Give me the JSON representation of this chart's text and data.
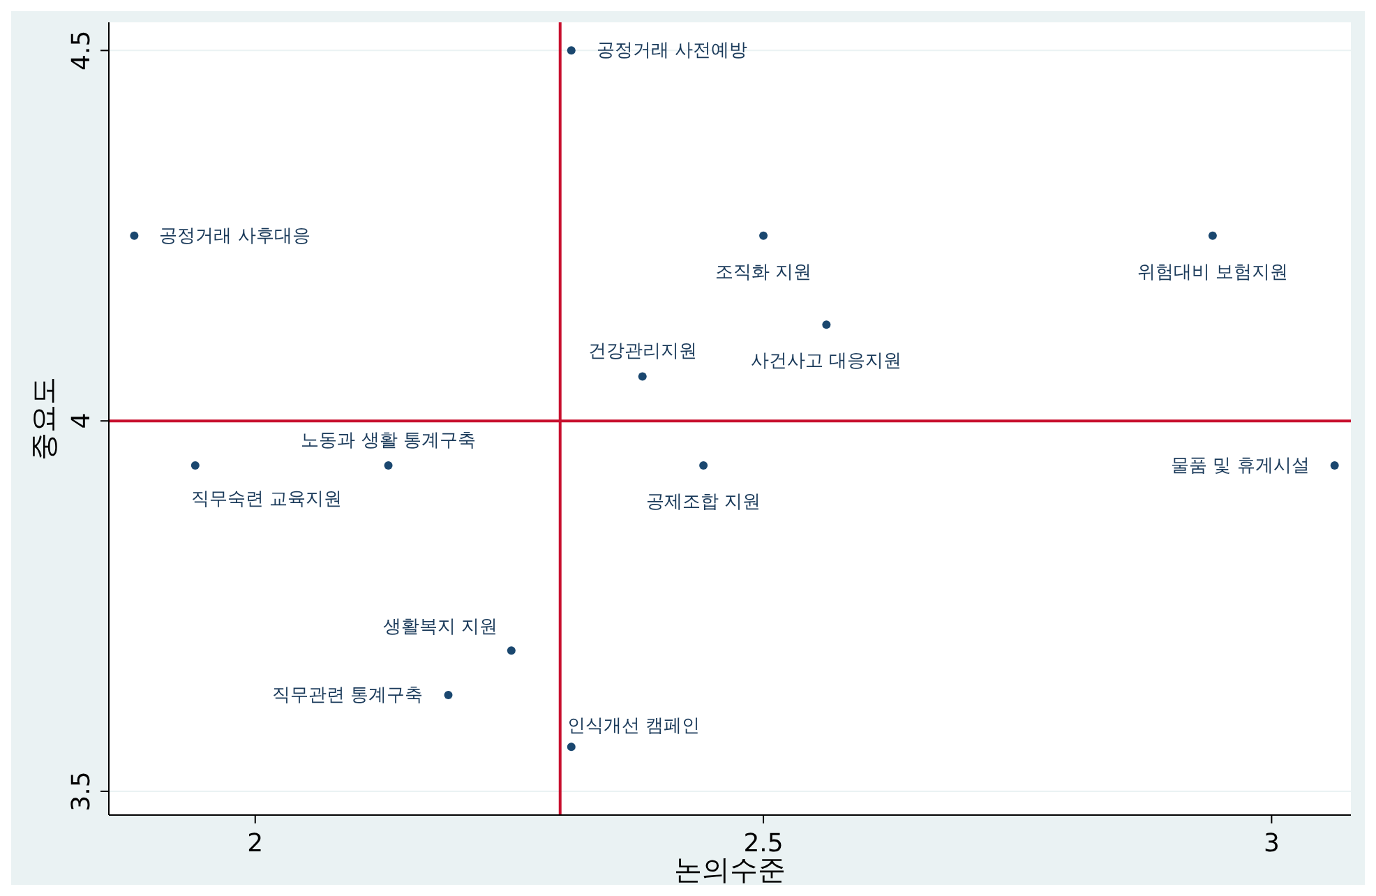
{
  "chart_data": {
    "type": "scatter",
    "xlabel": "논의수준",
    "ylabel": "중요도",
    "x": [
      2.311,
      1.881,
      2.5,
      2.942,
      2.562,
      2.381,
      2.131,
      1.941,
      2.441,
      3.062,
      2.252,
      2.19,
      2.311
    ],
    "values": [
      4.5,
      4.25,
      4.25,
      4.25,
      4.13,
      4.06,
      3.94,
      3.94,
      3.94,
      3.94,
      3.69,
      3.63,
      3.56
    ],
    "value_labels": [
      "공정거래 사전예방",
      "공정거래 사후대응",
      "조직화 지원",
      "위험대비 보험지원",
      "사건사고 대응지원",
      "건강관리지원",
      "노동과 생활 통계구축",
      "직무숙련 교육지원",
      "공제조합 지원",
      "물품 및 휴게시설",
      "생활복지 지원",
      "직무관련 통계구축",
      "인식개선 캠페인"
    ],
    "color": "#1a476f",
    "marker": "circle",
    "xlim": [
      1.856,
      3.078
    ],
    "ylim": [
      3.468,
      4.538
    ],
    "xticks": [
      2,
      2.5,
      3
    ],
    "yticks": [
      3.5,
      4,
      4.5
    ],
    "grid": "y",
    "ref_lines": [
      {
        "axis": "x",
        "value": 2.3,
        "color": "#c8102e"
      },
      {
        "axis": "y",
        "value": 4,
        "color": "#c8102e"
      }
    ]
  }
}
